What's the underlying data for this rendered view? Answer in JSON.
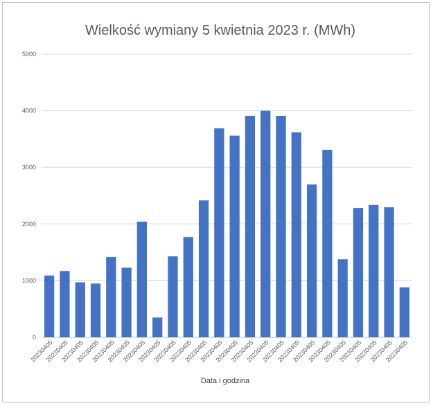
{
  "chart_data": {
    "type": "bar",
    "title": "Wielkość wymiany 5 kwietnia 2023 r. (MWh)",
    "xlabel": "Data i godzina",
    "ylabel": "",
    "ylim": [
      0,
      5000
    ],
    "yticks": [
      0,
      1000,
      2000,
      3000,
      4000,
      5000
    ],
    "grid": true,
    "categories": [
      "20230405",
      "20230405",
      "20230405",
      "20230405",
      "20230405",
      "20230405",
      "20230405",
      "20230405",
      "20230405",
      "20230405",
      "20230405",
      "20230405",
      "20230405",
      "20230405",
      "20230405",
      "20230405",
      "20230405",
      "20230405",
      "20230405",
      "20230405",
      "20230405",
      "20230405",
      "20230405",
      "20230405"
    ],
    "values": [
      1090,
      1170,
      970,
      950,
      1420,
      1230,
      2040,
      350,
      1430,
      1770,
      2420,
      3690,
      3560,
      3910,
      4000,
      3910,
      3620,
      2700,
      3310,
      1380,
      2280,
      2340,
      2300,
      880
    ],
    "bar_color": "#4472c4",
    "grid_color": "#d9d9d9"
  }
}
